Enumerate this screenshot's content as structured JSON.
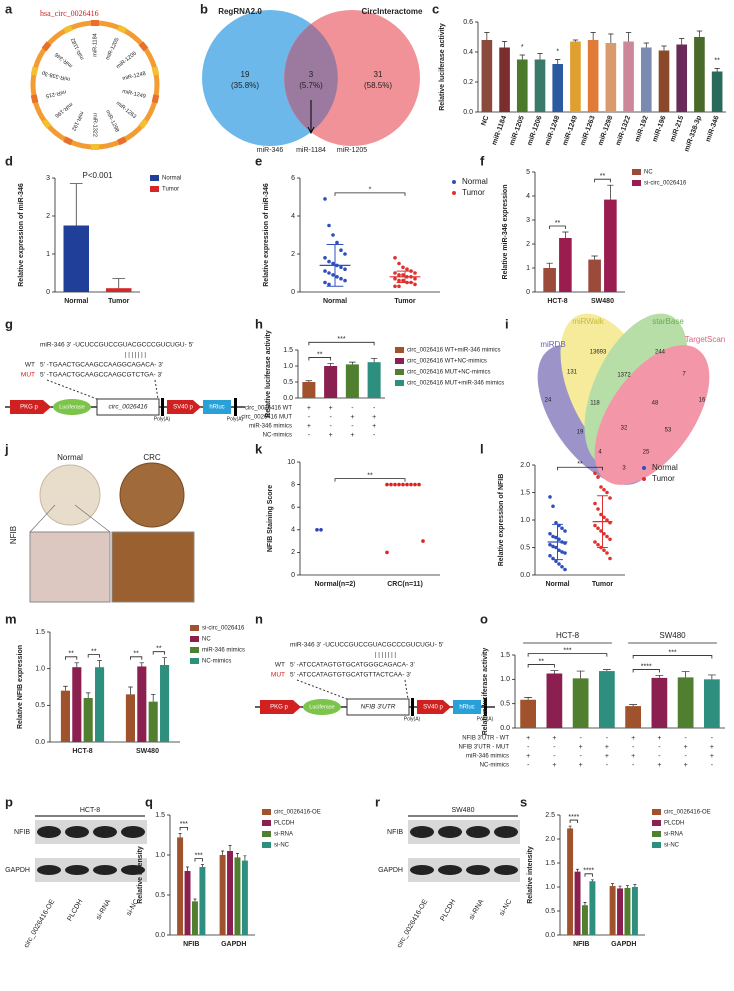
{
  "chart_data": [
    {
      "type": "bar",
      "panel": "c",
      "y_label": "Relative luciferase activity",
      "categories": [
        "NC",
        "miR-1184",
        "miR-1205",
        "miR-1206",
        "miR-1248",
        "miR-1249",
        "miR-1263",
        "miR-1298",
        "miR-1322",
        "miR-192",
        "miR-196",
        "miR-215",
        "miR-338-3p",
        "miR-346"
      ],
      "values": [
        0.48,
        0.43,
        0.35,
        0.35,
        0.32,
        0.47,
        0.48,
        0.46,
        0.47,
        0.43,
        0.41,
        0.45,
        0.5,
        0.27
      ],
      "errors": [
        0.05,
        0.04,
        0.03,
        0.04,
        0.03,
        0.01,
        0.05,
        0.06,
        0.06,
        0.03,
        0.03,
        0.04,
        0.04,
        0.02
      ],
      "colors": [
        "#8b4a3c",
        "#7a2e2e",
        "#4a7a2a",
        "#3a7a6a",
        "#2b5aa0",
        "#e0a030",
        "#e07b39",
        "#d99a6c",
        "#cc8899",
        "#7a8ab0",
        "#8a4a2a",
        "#6a2a5a",
        "#4a6a2a",
        "#2a6a5a"
      ],
      "ylim": [
        0,
        0.6
      ],
      "yticks": [
        {
          "value": 0,
          "label": "0.0"
        },
        0.2,
        0.4,
        0.6
      ],
      "annotations": [
        "*",
        "*",
        "**"
      ]
    },
    {
      "type": "bar",
      "panel": "d",
      "y_label": "Relative expression of miR-346",
      "categories": [
        "Normal",
        "Tumor"
      ],
      "values": [
        1.75,
        0.1
      ],
      "errors": [
        1.1,
        0.25
      ],
      "colors": [
        "#1f3f99",
        "#d62728"
      ],
      "legend": [
        "Normal",
        "Tumor"
      ],
      "ylim": [
        0,
        3
      ],
      "yticks": [
        0,
        1,
        2,
        3
      ],
      "annotations": [
        "P<0.001"
      ]
    },
    {
      "type": "strip",
      "panel": "e",
      "y_label": "Relative expression of miR-346",
      "categories": [
        "Normal",
        "Tumor"
      ],
      "series": [
        {
          "name": "Normal",
          "color": "#2f4fc0",
          "values": [
            4.9,
            3.5,
            3.0,
            2.6,
            2.2,
            2.0,
            1.8,
            1.6,
            1.5,
            1.4,
            1.3,
            1.2,
            1.1,
            1.0,
            0.9,
            0.8,
            0.7,
            0.6,
            0.5,
            0.4
          ]
        },
        {
          "name": "Tumor",
          "color": "#e03030",
          "values": [
            1.8,
            1.5,
            1.3,
            1.2,
            1.1,
            1.0,
            1.0,
            0.9,
            0.9,
            0.8,
            0.8,
            0.7,
            0.7,
            0.6,
            0.6,
            0.5,
            0.5,
            0.4,
            0.3,
            0.3
          ]
        }
      ],
      "means": [
        1.4,
        0.8
      ],
      "sds": [
        1.1,
        0.3
      ],
      "ylim": [
        0,
        6
      ],
      "yticks": [
        0,
        2,
        4,
        6
      ],
      "annotations": [
        "*"
      ]
    },
    {
      "type": "bar",
      "panel": "f",
      "y_label": "Relative miR-346 expression",
      "categories": [
        "HCT-8",
        "SW480"
      ],
      "series": [
        {
          "name": "NC",
          "color": "#9c4a3a",
          "values": [
            1.0,
            1.35
          ],
          "errors": [
            0.2,
            0.15
          ]
        },
        {
          "name": "si-circ_0026416",
          "color": "#9b1d50",
          "values": [
            2.25,
            3.85
          ],
          "errors": [
            0.25,
            0.6
          ]
        }
      ],
      "ylim": [
        0,
        5
      ],
      "yticks": [
        0,
        1,
        2,
        3,
        4,
        5
      ],
      "annotations": [
        "**",
        "**"
      ]
    },
    {
      "type": "bar",
      "panel": "h",
      "y_label": "Relative luciferase activity",
      "values": [
        0.5,
        1.0,
        1.05,
        1.12
      ],
      "errors": [
        0.04,
        0.08,
        0.07,
        0.12
      ],
      "colors": [
        "#a0522d",
        "#8b2050",
        "#4f7f2f",
        "#2f8f7f"
      ],
      "legend": [
        "circ_0026416 WT+miR-346 mimics",
        "circ_0026416 WT+NC-mimics",
        "circ_0026416 MUT+NC-mimics",
        "circ_0026416 MUT+miR-346 mimics"
      ],
      "ylim": [
        0,
        1.5
      ],
      "yticks": [
        {
          "value": 0,
          "label": "0.0"
        },
        0.5,
        {
          "value": 1,
          "label": "1.0"
        },
        1.5
      ],
      "annotations": [
        "**",
        "***"
      ],
      "table": {
        "rows": [
          {
            "label": "circ_0026416 WT",
            "cells": [
              "+",
              "+",
              "-",
              "-"
            ]
          },
          {
            "label": "circ_0026416 MUT",
            "cells": [
              "-",
              "-",
              "+",
              "+"
            ]
          },
          {
            "label": "miR-346 mimics",
            "cells": [
              "+",
              "-",
              "-",
              "+"
            ]
          },
          {
            "label": "NC-mimics",
            "cells": [
              "-",
              "+",
              "+",
              "-"
            ]
          }
        ]
      }
    },
    {
      "type": "strip",
      "panel": "k",
      "y_label": "NFIB Staining Score",
      "categories": [
        "Normal(n=2)",
        "CRC(n=11)"
      ],
      "series": [
        {
          "color": "#2f3fc0",
          "values": [
            4,
            4
          ]
        },
        {
          "color": "#e02020",
          "values": [
            8,
            8,
            8,
            8,
            8,
            8,
            8,
            8,
            8,
            3,
            2
          ]
        }
      ],
      "ylim": [
        0,
        10
      ],
      "yticks": [
        0,
        2,
        4,
        6,
        8,
        10
      ],
      "annotations": [
        "**"
      ]
    },
    {
      "type": "strip",
      "panel": "l",
      "y_label": "Relative expression of NFIB",
      "categories": [
        "Normal",
        "Tumor"
      ],
      "series": [
        {
          "name": "Normal",
          "color": "#2f4fc0",
          "values": [
            1.42,
            1.25,
            0.95,
            0.9,
            0.85,
            0.8,
            0.75,
            0.7,
            0.68,
            0.65,
            0.6,
            0.58,
            0.55,
            0.52,
            0.5,
            0.45,
            0.42,
            0.4,
            0.35,
            0.3,
            0.25,
            0.2,
            0.15,
            0.1
          ]
        },
        {
          "name": "Tumor",
          "color": "#e03030",
          "values": [
            1.85,
            1.78,
            1.6,
            1.55,
            1.5,
            1.4,
            1.3,
            1.2,
            1.1,
            1.05,
            1.0,
            0.95,
            0.9,
            0.85,
            0.8,
            0.75,
            0.7,
            0.65,
            0.6,
            0.55,
            0.5,
            0.45,
            0.4,
            0.3
          ]
        }
      ],
      "means": [
        0.6,
        0.97
      ],
      "sds": [
        0.32,
        0.47
      ],
      "ylim": [
        0,
        2
      ],
      "yticks": [
        {
          "value": 0,
          "label": "0.0"
        },
        0.5,
        {
          "value": 1,
          "label": "1.0"
        },
        1.5,
        {
          "value": 2,
          "label": "2.0"
        }
      ],
      "annotations": [
        "**"
      ]
    },
    {
      "type": "bar",
      "panel": "m",
      "y_label": "Relative NFIB expression",
      "categories": [
        "HCT-8",
        "SW480"
      ],
      "series": [
        {
          "name": "si-circ_0026416",
          "color": "#a0522d",
          "values": [
            0.7,
            0.65
          ],
          "errors": [
            0.06,
            0.1
          ]
        },
        {
          "name": "NC",
          "color": "#8b2050",
          "values": [
            1.02,
            1.03
          ],
          "errors": [
            0.06,
            0.05
          ]
        },
        {
          "name": "miR-346 mimics",
          "color": "#4f7f2f",
          "values": [
            0.6,
            0.55
          ],
          "errors": [
            0.07,
            0.1
          ]
        },
        {
          "name": "NC-mimics",
          "color": "#2f8f7f",
          "values": [
            1.02,
            1.05
          ],
          "errors": [
            0.09,
            0.1
          ]
        }
      ],
      "ylim": [
        0,
        1.5
      ],
      "yticks": [
        {
          "value": 0,
          "label": "0.0"
        },
        0.5,
        {
          "value": 1,
          "label": "1.0"
        },
        1.5
      ],
      "annotations": [
        "**",
        "**",
        "**",
        "**"
      ]
    },
    {
      "type": "bar",
      "panel": "o",
      "y_label": "Relative luciferase activity",
      "groups": [
        "HCT-8",
        "SW480"
      ],
      "values": [
        0.58,
        1.12,
        1.02,
        1.17,
        0.45,
        1.03,
        1.04,
        1.0
      ],
      "errors": [
        0.05,
        0.06,
        0.15,
        0.03,
        0.03,
        0.05,
        0.12,
        0.09
      ],
      "colors": [
        "#a0522d",
        "#8b2050",
        "#4f7f2f",
        "#2f8f7f",
        "#a0522d",
        "#8b2050",
        "#4f7f2f",
        "#2f8f7f"
      ],
      "ylim": [
        0,
        1.5
      ],
      "yticks": [
        {
          "value": 0,
          "label": "0.0"
        },
        0.5,
        {
          "value": 1,
          "label": "1.0"
        },
        1.5
      ],
      "annotations": [
        "**",
        "***",
        "****",
        "***"
      ],
      "table": {
        "rows": [
          {
            "label": "NFIB 3'UTR - WT",
            "cells": [
              "+",
              "+",
              "-",
              "-",
              "+",
              "+",
              "-",
              "-"
            ]
          },
          {
            "label": "NFIB 3'UTR - MUT",
            "cells": [
              "-",
              "-",
              "+",
              "+",
              "-",
              "-",
              "+",
              "+"
            ]
          },
          {
            "label": "miR-346 mimics",
            "cells": [
              "+",
              "-",
              "-",
              "+",
              "+",
              "-",
              "-",
              "+"
            ]
          },
          {
            "label": "NC-mimics",
            "cells": [
              "-",
              "+",
              "+",
              "-",
              "-",
              "+",
              "+",
              "-"
            ]
          }
        ]
      }
    },
    {
      "type": "bar",
      "panel": "q",
      "y_label": "Relative intensity",
      "categories": [
        "NFIB",
        "GAPDH"
      ],
      "series": [
        {
          "name": "circ_0026416-OE",
          "color": "#a0522d",
          "values": [
            1.22,
            1.0
          ],
          "errors": [
            0.05,
            0.05
          ]
        },
        {
          "name": "PLCDH",
          "color": "#8b2050",
          "values": [
            0.8,
            1.05
          ],
          "errors": [
            0.05,
            0.07
          ]
        },
        {
          "name": "si-RNA",
          "color": "#4f7f2f",
          "values": [
            0.42,
            0.97
          ],
          "errors": [
            0.03,
            0.05
          ]
        },
        {
          "name": "si-NC",
          "color": "#2f8f7f",
          "values": [
            0.85,
            0.93
          ],
          "errors": [
            0.03,
            0.06
          ]
        }
      ],
      "ylim": [
        0,
        1.5
      ],
      "yticks": [
        {
          "value": 0,
          "label": "0.0"
        },
        0.5,
        {
          "value": 1,
          "label": "1.0"
        },
        1.5
      ],
      "annotations": [
        "***",
        "***"
      ]
    },
    {
      "type": "bar",
      "panel": "s",
      "y_label": "Relative intensity",
      "categories": [
        "NFIB",
        "GAPDH"
      ],
      "series": [
        {
          "name": "circ_0026416-OE",
          "color": "#a0522d",
          "values": [
            2.22,
            1.02
          ],
          "errors": [
            0.05,
            0.05
          ]
        },
        {
          "name": "PLCDH",
          "color": "#8b2050",
          "values": [
            1.32,
            0.97
          ],
          "errors": [
            0.05,
            0.05
          ]
        },
        {
          "name": "si-RNA",
          "color": "#4f7f2f",
          "values": [
            0.62,
            0.98
          ],
          "errors": [
            0.06,
            0.05
          ]
        },
        {
          "name": "si-NC",
          "color": "#2f8f7f",
          "values": [
            1.12,
            1.0
          ],
          "errors": [
            0.03,
            0.05
          ]
        }
      ],
      "ylim": [
        0,
        2.5
      ],
      "yticks": [
        {
          "value": 0,
          "label": "0.0"
        },
        0.5,
        {
          "value": 1,
          "label": "1.0"
        },
        1.5,
        {
          "value": 2,
          "label": "2.0"
        },
        2.5
      ],
      "annotations": [
        "****",
        "****"
      ]
    }
  ],
  "panels": {
    "a": {
      "label": "a",
      "title": "hsa_circ_0026416",
      "mirnas": [
        "miR-1184",
        "miR-1205",
        "miR-1206",
        "miR-1248",
        "miR-1249",
        "miR-1263",
        "miR-1298",
        "miR-1322",
        "miR-192",
        "miR-196",
        "miR-215",
        "miR-338-3p",
        "miR-346",
        "miR-1182"
      ]
    },
    "b": {
      "label": "b",
      "set1": "RegRNA2.0",
      "set2": "CircInteractome",
      "left": "19",
      "left_pct": "(35.8%)",
      "mid": "3",
      "mid_pct": "(5.7%)",
      "right": "31",
      "right_pct": "(58.5%)",
      "mirnas": [
        "miR-346",
        "miR-1184",
        "miR-1205"
      ]
    },
    "g": {
      "label": "g",
      "mir": "miR-346 3' -UCUCCGUCCGUACGCCCGUCUGU- 5'",
      "pairs": "| | | | | | |",
      "wt_label": "WT",
      "wt": "5' -TGAACTGCAAGCCAAGGCAGACA- 3'",
      "mut_label": "MUT",
      "mut": "5' -TGAACTGCAAGCCAAGCGTCTGA- 3'",
      "promoter": "PKG p",
      "reporter": "Luciferase",
      "insert": "circ_0026416",
      "polya1": "Poly(A)",
      "promoter2": "SV40 p",
      "reporter2": "hRluc",
      "polya2": "Poly(A)"
    },
    "i": {
      "label": "i",
      "sets": [
        "miRDB",
        "miRWalk",
        "starBase",
        "TargetScan"
      ],
      "counts": [
        "13693",
        "244",
        "131",
        "1372",
        "7",
        "24",
        "118",
        "48",
        "16",
        "19",
        "32",
        "53",
        "4",
        "25",
        "3"
      ]
    },
    "j": {
      "label": "j",
      "columns": [
        "Normal",
        "CRC"
      ],
      "row": "NFIB"
    },
    "n": {
      "label": "n",
      "mir": "miR-346 3' -UCUCCGUCCGUACGCCCGUCUGU- 5'",
      "pairs": "| | | | | | |",
      "wt_label": "WT",
      "wt": "5' -ATCCATAGTGTGCATGGGCAGACA- 3'",
      "mut_label": "MUT",
      "mut": "5' -ATCCATAGTGTGCATGTTACTCAA- 3'",
      "promoter": "PKG p",
      "reporter": "Luciferase",
      "insert": "NFIB 3'UTR",
      "polya1": "Poly(A)",
      "promoter2": "SV40 p",
      "reporter2": "hRluc",
      "polya2": "Poly(A)"
    },
    "p": {
      "label": "p",
      "cell": "HCT-8",
      "rows": [
        "NFIB",
        "GAPDH"
      ],
      "lanes": [
        "circ_0026416-OE",
        "PLCDH",
        "si-RNA",
        "si-NC"
      ]
    },
    "r": {
      "label": "r",
      "cell": "SW480",
      "rows": [
        "NFIB",
        "GAPDH"
      ],
      "lanes": [
        "circ_0026416-OE",
        "PLCDH",
        "si-RNA",
        "si-NC"
      ]
    }
  }
}
